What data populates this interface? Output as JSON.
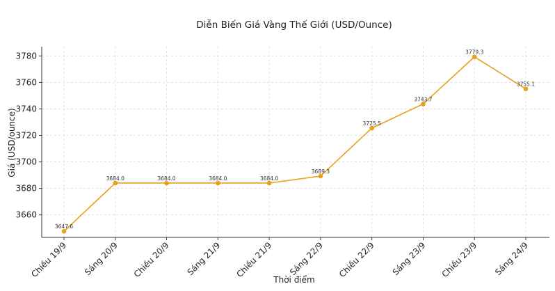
{
  "chart_data": {
    "type": "line",
    "title": "Diễn Biến Giá Vàng Thế Giới (USD/Ounce)",
    "xlabel": "Thời điểm",
    "ylabel": "Giá (USD/ounce)",
    "categories": [
      "Chiều 19/9",
      "Sáng 20/9",
      "Chiều 20/9",
      "Sáng 21/9",
      "Chiều 21/9",
      "Sáng 22/9",
      "Chiều 22/9",
      "Sáng 23/9",
      "Chiều 23/9",
      "Sáng 24/9"
    ],
    "values": [
      3647.6,
      3684.0,
      3684.0,
      3684.0,
      3684.0,
      3689.3,
      3725.5,
      3743.7,
      3779.3,
      3755.1
    ],
    "data_labels": [
      "3647.6",
      "3684.0",
      "3684.0",
      "3684.0",
      "3684.0",
      "3689.3",
      "3725.5",
      "3743.7",
      "3779.3",
      "3755.1"
    ],
    "ylim": [
      3643.0,
      3787.0
    ],
    "yticks": [
      3660,
      3680,
      3700,
      3720,
      3740,
      3760,
      3780
    ],
    "grid": true,
    "line_color": "#E6A11E"
  }
}
